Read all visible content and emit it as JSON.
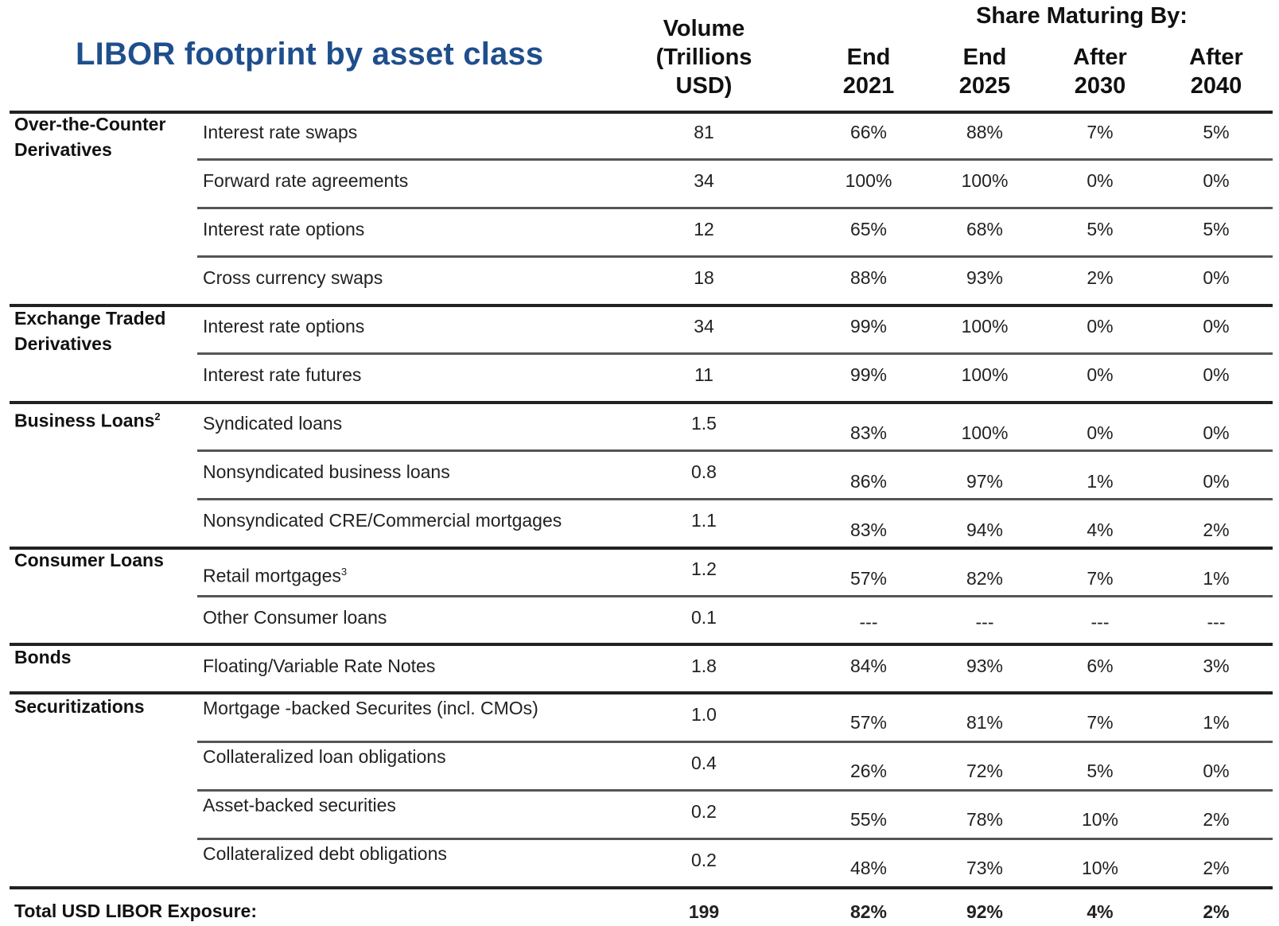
{
  "title": "LIBOR footprint by asset class",
  "header": {
    "volume": [
      "Volume",
      "(Trillions",
      "USD)"
    ],
    "share_maturing": "Share Maturing By:",
    "columns": [
      [
        "End",
        "2021"
      ],
      [
        "End",
        "2025"
      ],
      [
        "After",
        "2030"
      ],
      [
        "After",
        "2040"
      ]
    ]
  },
  "categories": [
    {
      "name": [
        "Over-the-Counter",
        "Derivatives"
      ],
      "sup": ""
    },
    {
      "name": [
        "Exchange Traded",
        "Derivatives"
      ],
      "sup": ""
    },
    {
      "name": [
        "Business Loans"
      ],
      "sup": "2"
    },
    {
      "name": [
        "Consumer Loans"
      ],
      "sup": ""
    },
    {
      "name": [
        "Bonds"
      ],
      "sup": ""
    },
    {
      "name": [
        "Securitizations"
      ],
      "sup": ""
    }
  ],
  "rows": [
    {
      "label": "Interest rate swaps",
      "sup": "",
      "volume": "81",
      "values": [
        "66%",
        "88%",
        "7%",
        "5%"
      ]
    },
    {
      "label": "Forward rate agreements",
      "sup": "",
      "volume": "34",
      "values": [
        "100%",
        "100%",
        "0%",
        "0%"
      ]
    },
    {
      "label": "Interest rate options",
      "sup": "",
      "volume": "12",
      "values": [
        "65%",
        "68%",
        "5%",
        "5%"
      ]
    },
    {
      "label": "Cross currency swaps",
      "sup": "",
      "volume": "18",
      "values": [
        "88%",
        "93%",
        "2%",
        "0%"
      ]
    },
    {
      "label": "Interest rate options",
      "sup": "",
      "volume": "34",
      "values": [
        "99%",
        "100%",
        "0%",
        "0%"
      ]
    },
    {
      "label": "Interest rate futures",
      "sup": "",
      "volume": "11",
      "values": [
        "99%",
        "100%",
        "0%",
        "0%"
      ]
    },
    {
      "label": "Syndicated loans",
      "sup": "",
      "volume": "1.5",
      "values": [
        "83%",
        "100%",
        "0%",
        "0%"
      ]
    },
    {
      "label": "Nonsyndicated business loans",
      "sup": "",
      "volume": "0.8",
      "values": [
        "86%",
        "97%",
        "1%",
        "0%"
      ]
    },
    {
      "label": "Nonsyndicated CRE/Commercial mortgages",
      "sup": "",
      "volume": "1.1",
      "values": [
        "83%",
        "94%",
        "4%",
        "2%"
      ]
    },
    {
      "label": "Retail mortgages",
      "sup": "3",
      "volume": "1.2",
      "values": [
        "57%",
        "82%",
        "7%",
        "1%"
      ]
    },
    {
      "label": "Other Consumer loans",
      "sup": "",
      "volume": "0.1",
      "values": [
        "---",
        "---",
        "---",
        "---"
      ]
    },
    {
      "label": "Floating/Variable Rate Notes",
      "sup": "",
      "volume": "1.8",
      "values": [
        "84%",
        "93%",
        "6%",
        "3%"
      ]
    },
    {
      "label": "Mortgage -backed Securites  (incl. CMOs)",
      "sup": "",
      "volume": "1.0",
      "values": [
        "57%",
        "81%",
        "7%",
        "1%"
      ]
    },
    {
      "label": "Collateralized loan obligations",
      "sup": "",
      "volume": "0.4",
      "values": [
        "26%",
        "72%",
        "5%",
        "0%"
      ]
    },
    {
      "label": "Asset-backed securities",
      "sup": "",
      "volume": "0.2",
      "values": [
        "55%",
        "78%",
        "10%",
        "2%"
      ]
    },
    {
      "label": "Collateralized debt obligations",
      "sup": "",
      "volume": "0.2",
      "values": [
        "48%",
        "73%",
        "10%",
        "2%"
      ]
    }
  ],
  "total": {
    "label": "Total USD LIBOR Exposure:",
    "volume": "199",
    "values": [
      "82%",
      "92%",
      "4%",
      "2%"
    ]
  }
}
